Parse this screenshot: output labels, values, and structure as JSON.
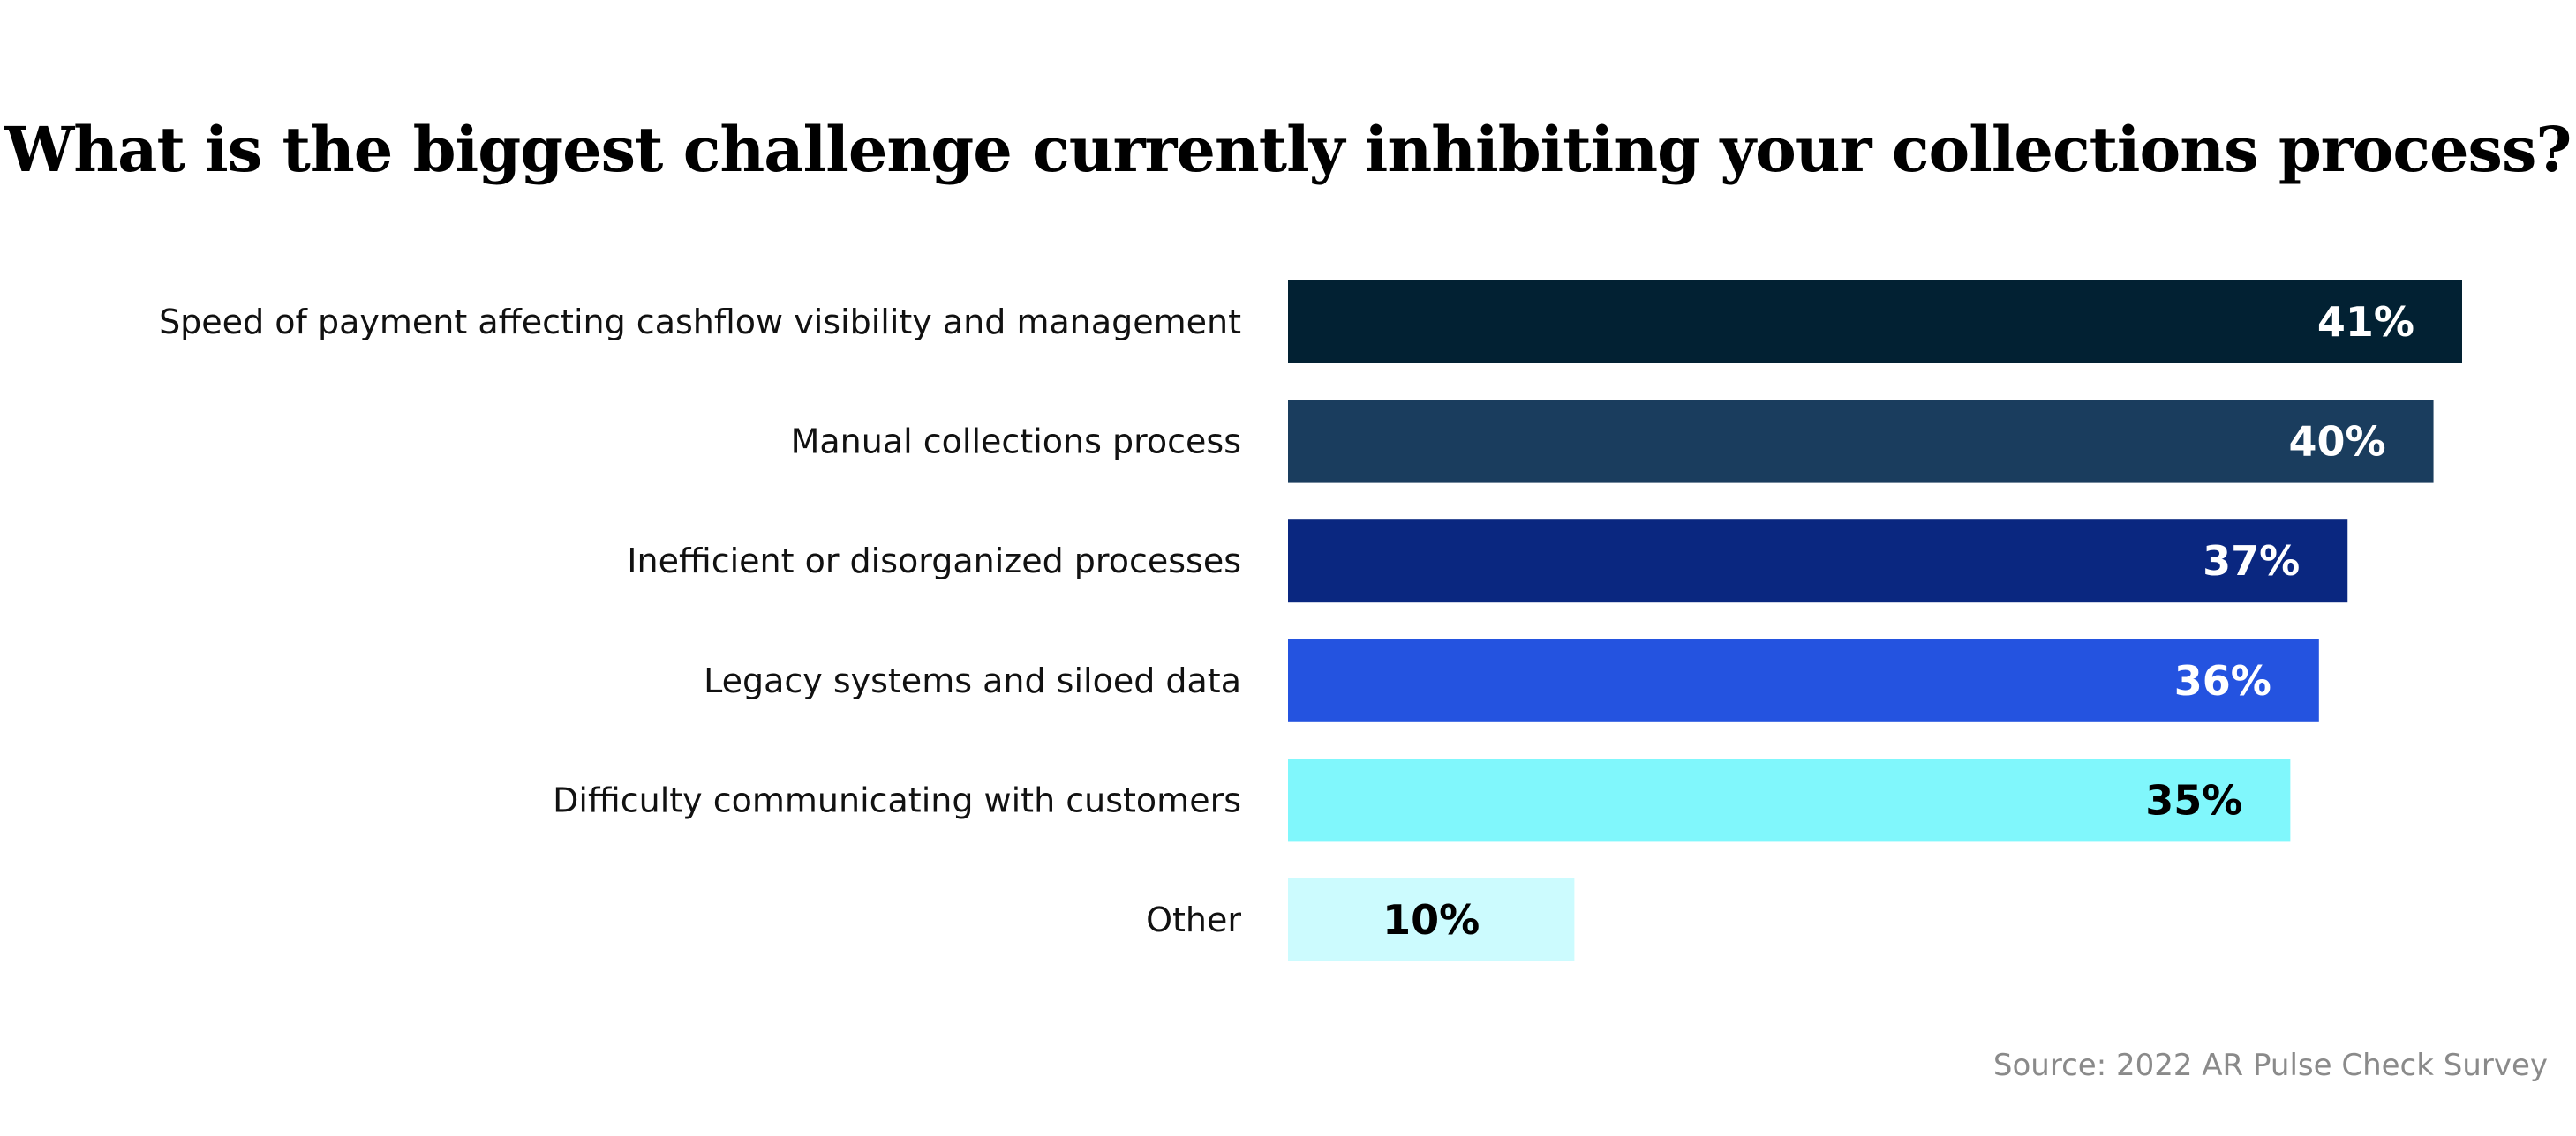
{
  "chart_data": {
    "type": "bar",
    "orientation": "horizontal",
    "title": "What is the biggest challenge currently inhibiting your collections process?",
    "categories": [
      "Speed of payment affecting cashflow visibility and management",
      "Manual collections process",
      "Inefficient or disorganized processes",
      "Legacy systems and siloed data",
      "Difficulty communicating with customers",
      "Other"
    ],
    "values": [
      41,
      40,
      37,
      36,
      35,
      10
    ],
    "value_labels": [
      "41%",
      "40%",
      "37%",
      "36%",
      "35%",
      "10%"
    ],
    "unit": "%",
    "xlim": [
      0,
      41
    ],
    "grid": false,
    "legend": "none",
    "bar_colors": [
      "#022133",
      "#1a3d5e",
      "#0a2780",
      "#2453e0",
      "#80f7fc",
      "#ccfbfe"
    ],
    "label_colors": [
      "#ffffff",
      "#ffffff",
      "#ffffff",
      "#ffffff",
      "#000000",
      "#000000"
    ]
  },
  "source": "Source: 2022 AR Pulse Check Survey"
}
